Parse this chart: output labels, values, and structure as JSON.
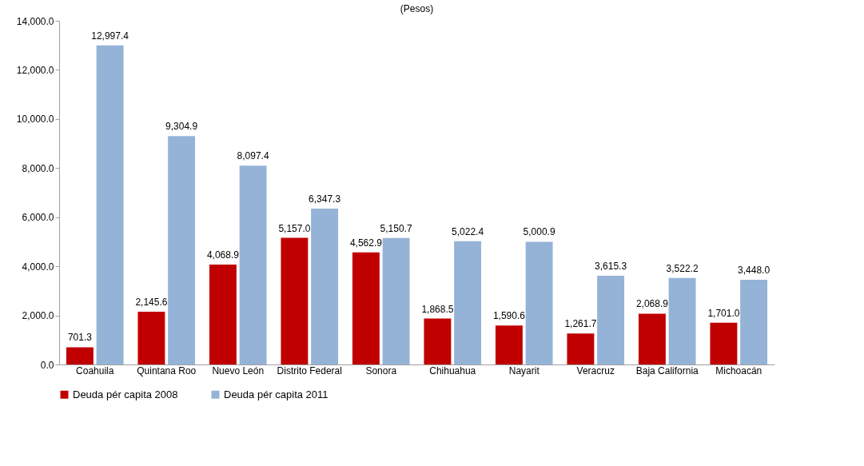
{
  "chart_data": {
    "type": "bar",
    "title": "(Pesos)",
    "categories": [
      "Coahuila",
      "Quintana Roo",
      "Nuevo León",
      "Distrito Federal",
      "Sonora",
      "Chihuahua",
      "Nayarit",
      "Veracruz",
      "Baja California",
      "Michoacán"
    ],
    "series": [
      {
        "name": "Deuda pér capita 2008",
        "color": "#c00000",
        "values": [
          701.3,
          2145.6,
          4068.9,
          5157.0,
          4562.9,
          1868.5,
          1590.6,
          1261.7,
          2068.9,
          1701.0
        ],
        "value_labels": [
          "701.3",
          "2,145.6",
          "4,068.9",
          "5,157.0",
          "4,562.9",
          "1,868.5",
          "1,590.6",
          "1,261.7",
          "2,068.9",
          "1,701.0"
        ]
      },
      {
        "name": "Deuda pér capita 2011",
        "color": "#95b3d7",
        "values": [
          12997.4,
          9304.9,
          8097.4,
          6347.3,
          5150.7,
          5022.4,
          5000.9,
          3615.3,
          3522.2,
          3448.0
        ],
        "value_labels": [
          "12,997.4",
          "9,304.9",
          "8,097.4",
          "6,347.3",
          "5,150.7",
          "5,022.4",
          "5,000.9",
          "3,615.3",
          "3,522.2",
          "3,448.0"
        ]
      }
    ],
    "ylim": [
      0,
      14000
    ],
    "yticks": [
      {
        "value": 0,
        "label": "0.0"
      },
      {
        "value": 2000,
        "label": "2,000.0"
      },
      {
        "value": 4000,
        "label": "4,000.0"
      },
      {
        "value": 6000,
        "label": "6,000.0"
      },
      {
        "value": 8000,
        "label": "8,000.0"
      },
      {
        "value": 10000,
        "label": "10,000.0"
      },
      {
        "value": 12000,
        "label": "12,000.0"
      },
      {
        "value": 14000,
        "label": "14,000.0"
      }
    ],
    "legend": "bottom",
    "grid": false
  }
}
